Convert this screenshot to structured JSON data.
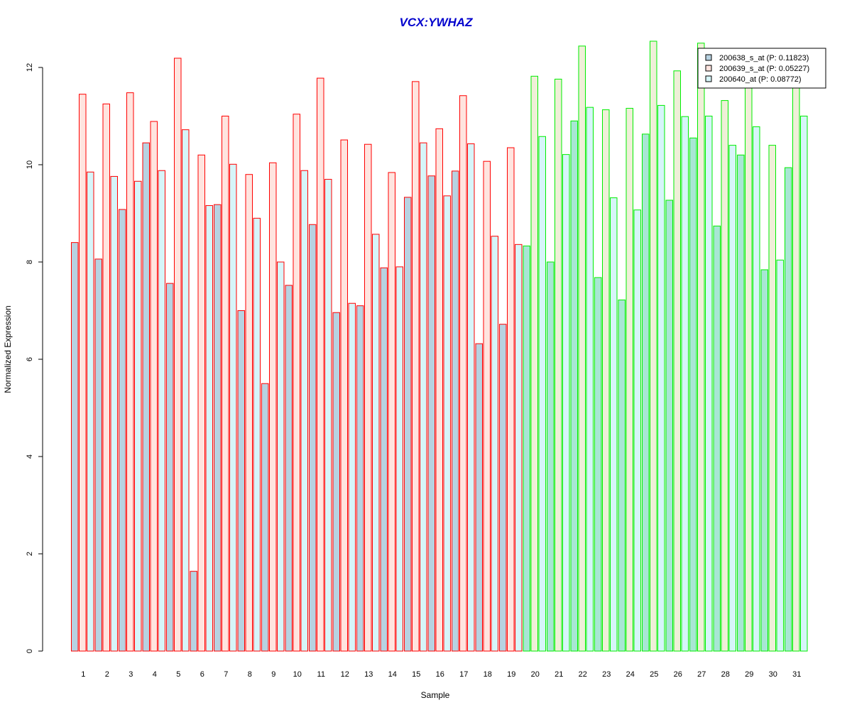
{
  "chart_data": {
    "type": "bar",
    "title": "VCX:YWHAZ",
    "xlabel": "Sample",
    "ylabel": "Normalized Expression",
    "ylim": [
      0,
      12.5
    ],
    "yticks": [
      0,
      2,
      4,
      6,
      8,
      10,
      12
    ],
    "categories": [
      "1",
      "2",
      "3",
      "4",
      "5",
      "6",
      "7",
      "8",
      "9",
      "10",
      "11",
      "12",
      "13",
      "14",
      "15",
      "16",
      "17",
      "18",
      "19",
      "20",
      "21",
      "22",
      "23",
      "24",
      "25",
      "26",
      "27",
      "28",
      "29",
      "30",
      "31"
    ],
    "groups": [
      {
        "samples": [
          1,
          19
        ],
        "border_color": "#ff0000"
      },
      {
        "samples": [
          20,
          31
        ],
        "border_color": "#00ee00"
      }
    ],
    "series": [
      {
        "name": "200638_s_at (P: 0.11823)",
        "fill": "#b7d2e1",
        "values": [
          8.4,
          8.06,
          9.08,
          10.45,
          7.56,
          1.64,
          9.18,
          7.0,
          5.5,
          7.52,
          8.77,
          6.96,
          7.1,
          7.88,
          9.33,
          9.77,
          9.87,
          6.32,
          6.72,
          8.33,
          8.0,
          10.9,
          7.68,
          7.22,
          10.63,
          9.27,
          10.55,
          8.74,
          10.2,
          7.84,
          9.94
        ]
      },
      {
        "name": "200639_s_at (P: 0.05227)",
        "fill": "#ffe4df",
        "fill_alt": "#efefd8",
        "values": [
          11.45,
          11.25,
          11.48,
          10.89,
          12.19,
          10.2,
          11.0,
          9.8,
          10.04,
          11.04,
          11.78,
          10.51,
          10.42,
          9.84,
          11.71,
          10.74,
          11.42,
          10.07,
          10.35,
          11.82,
          11.76,
          12.44,
          11.13,
          11.16,
          12.54,
          11.93,
          12.5,
          11.32,
          11.65,
          10.4,
          11.58
        ]
      },
      {
        "name": "200640_at (P: 0.08772)",
        "fill": "#d6f5f9",
        "values": [
          9.85,
          9.76,
          9.66,
          9.88,
          10.72,
          9.16,
          10.01,
          8.9,
          8.0,
          9.88,
          9.7,
          7.15,
          8.57,
          7.9,
          10.45,
          9.36,
          10.43,
          8.53,
          8.36,
          10.58,
          10.21,
          11.18,
          9.32,
          9.07,
          11.22,
          10.99,
          11.0,
          10.4,
          10.78,
          8.04,
          11.0
        ]
      }
    ],
    "group2_series1_fill": "#a8e6d4",
    "legend_position": "top-right",
    "grid": false
  }
}
